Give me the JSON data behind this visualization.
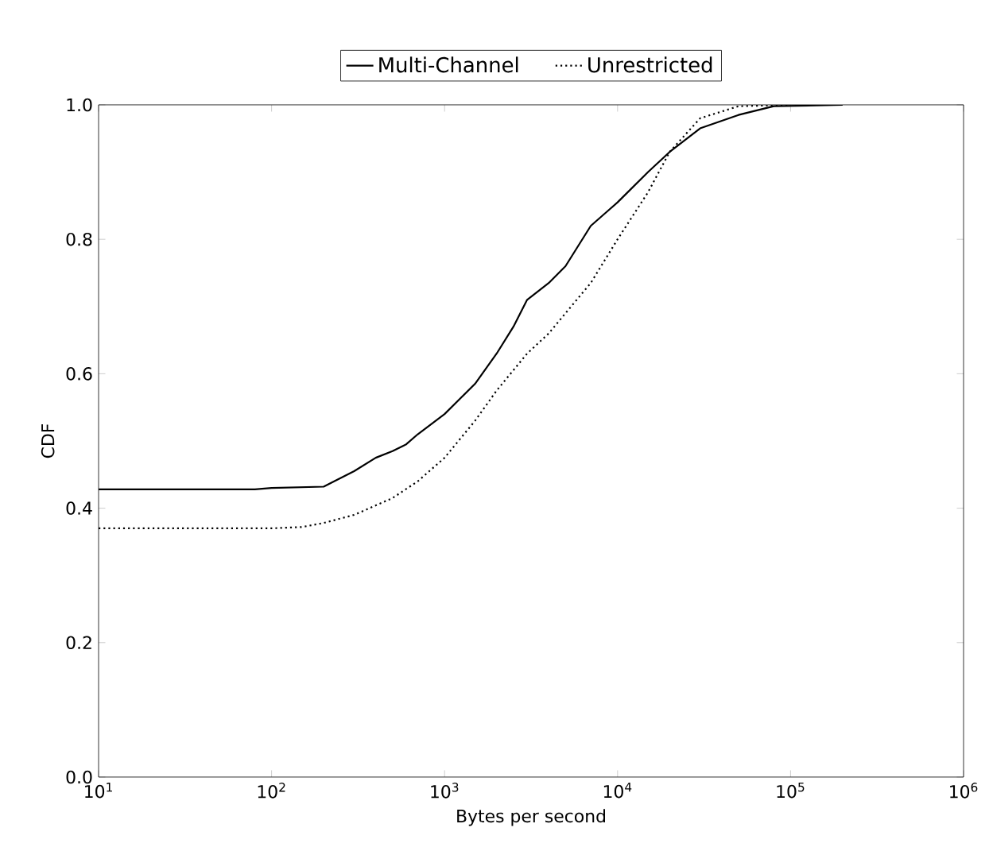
{
  "chart_data": {
    "type": "line",
    "xlabel": "Bytes per second",
    "ylabel": "CDF",
    "log": "x",
    "legend": "top",
    "xlim": [
      10,
      1000000
    ],
    "ylim": [
      0,
      1
    ],
    "xticks": [
      {
        "value": 10,
        "label": "10$^{1}$"
      },
      {
        "value": 100,
        "label": "10$^{2}$"
      },
      {
        "value": 1000,
        "label": "10$^{3}$"
      },
      {
        "value": 10000,
        "label": "10$^{4}$"
      },
      {
        "value": 100000,
        "label": "10$^{5}$"
      },
      {
        "value": 1000000,
        "label": "10$^{6}$"
      }
    ],
    "yticks": [
      {
        "value": 0,
        "label": "0.0"
      },
      {
        "value": 0.2,
        "label": "0.2"
      },
      {
        "value": 0.4,
        "label": "0.4"
      },
      {
        "value": 0.6,
        "label": "0.6"
      },
      {
        "value": 0.8,
        "label": "0.8"
      },
      {
        "value": 1,
        "label": "1.0"
      }
    ],
    "series": [
      {
        "name": "Multi-Channel",
        "color": "#000000",
        "line_style": "solid",
        "x": [
          10,
          80,
          100,
          200,
          230,
          300,
          400,
          500,
          600,
          700,
          1000,
          1500,
          2000,
          2500,
          3000,
          4000,
          5000,
          7000,
          10000,
          15000,
          20000,
          30000,
          50000,
          80000,
          200000
        ],
        "values": [
          0.428,
          0.428,
          0.43,
          0.432,
          0.44,
          0.455,
          0.475,
          0.485,
          0.495,
          0.51,
          0.54,
          0.585,
          0.63,
          0.67,
          0.71,
          0.735,
          0.76,
          0.82,
          0.855,
          0.9,
          0.93,
          0.965,
          0.985,
          0.998,
          1.0
        ]
      },
      {
        "name": "Unrestricted",
        "color": "#000000",
        "line_style": "dotted",
        "x": [
          10,
          100,
          150,
          200,
          300,
          500,
          700,
          1000,
          1500,
          2000,
          3000,
          4000,
          5000,
          7000,
          10000,
          15000,
          20000,
          30000,
          50000,
          100000
        ],
        "values": [
          0.37,
          0.37,
          0.372,
          0.378,
          0.39,
          0.415,
          0.44,
          0.475,
          0.53,
          0.575,
          0.63,
          0.66,
          0.69,
          0.735,
          0.8,
          0.87,
          0.93,
          0.98,
          0.998,
          1.0
        ]
      }
    ]
  }
}
